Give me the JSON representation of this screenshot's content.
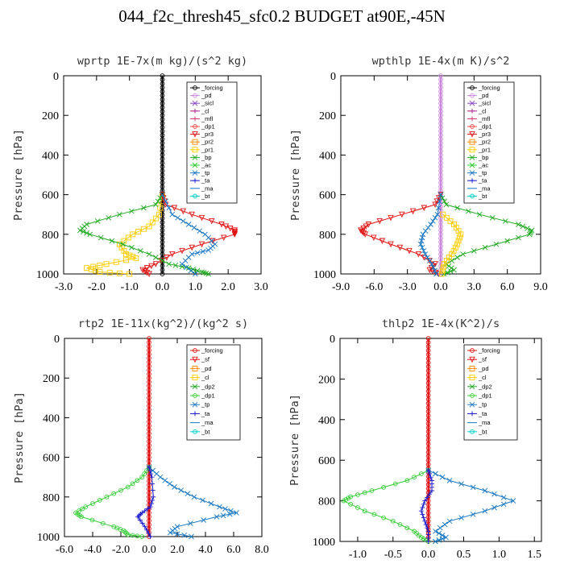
{
  "title": "044_f2c_thresh45_sfc0.2  BUDGET at90E,-45N",
  "chart_data": [
    {
      "type": "line",
      "title": "wprtp  1E-7x(m kg)/(s^2 kg)",
      "ylabel": "Pressure [hPa]",
      "xlim": [
        -3.0,
        3.0
      ],
      "ylim": [
        1000,
        0
      ],
      "xticks": [
        -3.0,
        -2.0,
        -1.0,
        0.0,
        1.0,
        2.0,
        3.0
      ],
      "xtick_labels": [
        "-3.0",
        "-2.0",
        "-1.0",
        "0.0",
        "1.0",
        "2.0",
        "3.0"
      ],
      "yticks": [
        0,
        200,
        400,
        600,
        800,
        1000
      ],
      "ytick_labels": [
        "0",
        "200",
        "400",
        "600",
        "800",
        "1000"
      ],
      "legend": [
        "_forcing",
        "_pd",
        "_sicl",
        "_cl",
        "_mfl",
        "_dp1",
        "_pr3",
        "_pr2",
        "_pr1",
        "_bp",
        "_ac",
        "_tp",
        "_ta",
        "_ma",
        "_bt"
      ],
      "series": [
        {
          "name": "_forcing",
          "color": "#000000",
          "marker": "o",
          "p": [
            0,
            1000
          ],
          "x": [
            0,
            0
          ]
        },
        {
          "name": "_pr1",
          "color": "#ffcc00",
          "marker": "s",
          "p": [
            600,
            700,
            760,
            800,
            850,
            900,
            920,
            950,
            970,
            990,
            1000
          ],
          "x": [
            0,
            -0.1,
            -0.4,
            -0.9,
            -1.3,
            -1.1,
            -0.8,
            -1.7,
            -2.3,
            -1.9,
            -1.0
          ]
        },
        {
          "name": "_pr3",
          "color": "#e01010",
          "marker": "v",
          "p": [
            600,
            650,
            700,
            750,
            780,
            800,
            850,
            900,
            950,
            980,
            1000
          ],
          "x": [
            0,
            0.1,
            0.9,
            1.8,
            2.2,
            2.2,
            1.2,
            0.3,
            -0.2,
            -0.6,
            -0.4
          ]
        },
        {
          "name": "_bp",
          "color": "#22aa22",
          "marker": "x",
          "p": [
            600,
            650,
            700,
            750,
            780,
            800,
            850,
            900,
            950,
            970,
            990,
            1000
          ],
          "x": [
            0,
            -0.2,
            -1.3,
            -2.3,
            -2.5,
            -2.2,
            -1.2,
            -0.4,
            0.2,
            0.8,
            1.2,
            1.4
          ]
        },
        {
          "name": "_tp",
          "color": "#1a78c2",
          "marker": "x",
          "p": [
            600,
            700,
            750,
            800,
            850,
            880,
            900,
            950,
            1000
          ],
          "x": [
            0,
            0.3,
            0.8,
            1.3,
            1.6,
            1.4,
            0.9,
            0.6,
            1.0
          ]
        }
      ]
    },
    {
      "type": "line",
      "title": "wpthlp  1E-4x(m K)/s^2",
      "ylabel": "Pressure [hPa]",
      "xlim": [
        -9.0,
        9.0
      ],
      "ylim": [
        1000,
        0
      ],
      "xticks": [
        -9.0,
        -6.0,
        -3.0,
        0.0,
        3.0,
        6.0,
        9.0
      ],
      "xtick_labels": [
        "-9.0",
        "-6.0",
        "-3.0",
        "0.0",
        "3.0",
        "6.0",
        "9.0"
      ],
      "yticks": [
        0,
        200,
        400,
        600,
        800,
        1000
      ],
      "ytick_labels": [
        "0",
        "200",
        "400",
        "600",
        "800",
        "1000"
      ],
      "legend": [
        "_forcing",
        "_pd",
        "_sicl",
        "_cl",
        "_mfl",
        "_dp1",
        "_pr3",
        "_pr2",
        "_pr1",
        "_bp",
        "_ac",
        "_tp",
        "_ta",
        "_ma",
        "_bt"
      ],
      "series": [
        {
          "name": "_forcing",
          "color": "#cc88dd",
          "marker": "o",
          "p": [
            0,
            1000
          ],
          "x": [
            0,
            0
          ]
        },
        {
          "name": "_pr3",
          "color": "#e01010",
          "marker": "v",
          "p": [
            600,
            650,
            700,
            750,
            780,
            800,
            850,
            900,
            950,
            980,
            1000
          ],
          "x": [
            0,
            -0.5,
            -3.5,
            -6.5,
            -7.2,
            -6.8,
            -4.5,
            -2.0,
            -0.5,
            -1.0,
            -0.2
          ]
        },
        {
          "name": "_bp",
          "color": "#22aa22",
          "marker": "x",
          "p": [
            600,
            650,
            700,
            750,
            780,
            800,
            850,
            900,
            950,
            980,
            1000
          ],
          "x": [
            0,
            0.5,
            3.5,
            7.0,
            8.2,
            8.0,
            5.0,
            2.0,
            0.5,
            1.2,
            0.3
          ]
        },
        {
          "name": "_pr1",
          "color": "#ffcc00",
          "marker": "s",
          "p": [
            700,
            750,
            800,
            850,
            900,
            950,
            1000
          ],
          "x": [
            0.2,
            1.2,
            1.8,
            1.5,
            1.0,
            0.3,
            0.1
          ]
        },
        {
          "name": "_tp",
          "color": "#1a78c2",
          "marker": "x",
          "p": [
            600,
            700,
            750,
            800,
            850,
            900,
            950,
            1000
          ],
          "x": [
            0,
            -0.3,
            -0.9,
            -1.6,
            -1.8,
            -1.4,
            -0.8,
            -0.4
          ]
        }
      ]
    },
    {
      "type": "line",
      "title": "rtp2  1E-11x(kg^2)/(kg^2 s)",
      "ylabel": "Pressure [hPa]",
      "xlim": [
        -6.0,
        8.0
      ],
      "ylim": [
        1000,
        0
      ],
      "xticks": [
        -6.0,
        -4.0,
        -2.0,
        0.0,
        2.0,
        4.0,
        6.0,
        8.0
      ],
      "xtick_labels": [
        "-6.0",
        "-4.0",
        "-2.0",
        "0.0",
        "2.0",
        "4.0",
        "6.0",
        "8.0"
      ],
      "yticks": [
        0,
        200,
        400,
        600,
        800,
        1000
      ],
      "ytick_labels": [
        "0",
        "200",
        "400",
        "600",
        "800",
        "1000"
      ],
      "legend": [
        "_forcing",
        "_sf",
        "_pd",
        "_cl",
        "_dp2",
        "_dp1",
        "_tp",
        "_ta",
        "_ma",
        "_bt"
      ],
      "series": [
        {
          "name": "_forcing",
          "color": "#e01010",
          "marker": "o",
          "p": [
            0,
            1000
          ],
          "x": [
            0,
            0
          ]
        },
        {
          "name": "_dp1",
          "color": "#33cc33",
          "marker": "o",
          "p": [
            650,
            700,
            750,
            800,
            850,
            880,
            900,
            950,
            970,
            990,
            1000
          ],
          "x": [
            0,
            -0.5,
            -1.5,
            -3.0,
            -4.5,
            -5.2,
            -4.8,
            -2.5,
            -1.8,
            -1.5,
            -0.5
          ]
        },
        {
          "name": "_tp",
          "color": "#1a78c2",
          "marker": "x",
          "p": [
            650,
            700,
            750,
            800,
            850,
            880,
            900,
            950,
            980,
            1000
          ],
          "x": [
            0,
            0.8,
            1.8,
            3.2,
            5.0,
            6.2,
            4.8,
            2.0,
            1.5,
            3.0
          ]
        },
        {
          "name": "_ta",
          "color": "#1a1acc",
          "marker": "+",
          "p": [
            650,
            700,
            800,
            850,
            880,
            900,
            950,
            1000
          ],
          "x": [
            0,
            0.2,
            0.3,
            0.1,
            -0.5,
            -0.8,
            -0.3,
            0.1
          ]
        }
      ]
    },
    {
      "type": "line",
      "title": "thlp2  1E-4x(K^2)/s",
      "ylabel": "Pressure [hPa]",
      "xlim": [
        -1.25,
        1.6
      ],
      "ylim": [
        1000,
        0
      ],
      "xticks": [
        -1.0,
        -0.5,
        0.0,
        0.5,
        1.0,
        1.5
      ],
      "xtick_labels": [
        "-1.0",
        "-0.5",
        "0.0",
        "0.5",
        "1.0",
        "1.5"
      ],
      "yticks": [
        0,
        200,
        400,
        600,
        800,
        1000
      ],
      "ytick_labels": [
        "0",
        "200",
        "400",
        "600",
        "800",
        "1000"
      ],
      "legend": [
        "_forcing",
        "_sf",
        "_pd",
        "_cl",
        "_dp2",
        "_dp1",
        "_tp",
        "_ta",
        "_ma",
        "_bt"
      ],
      "series": [
        {
          "name": "_forcing",
          "color": "#e01010",
          "marker": "o",
          "p": [
            0,
            1000
          ],
          "x": [
            0,
            0
          ]
        },
        {
          "name": "_dp1",
          "color": "#33cc33",
          "marker": "o",
          "p": [
            650,
            700,
            750,
            780,
            800,
            850,
            900,
            950,
            980,
            1000
          ],
          "x": [
            0,
            -0.3,
            -0.8,
            -1.1,
            -1.2,
            -0.9,
            -0.5,
            -0.2,
            -0.1,
            0
          ]
        },
        {
          "name": "_tp",
          "color": "#1a78c2",
          "marker": "x",
          "p": [
            650,
            700,
            750,
            800,
            850,
            900,
            950,
            980,
            1000
          ],
          "x": [
            0,
            0.3,
            0.8,
            1.2,
            0.8,
            0.3,
            0.1,
            0.25,
            0.1
          ]
        },
        {
          "name": "_ta",
          "color": "#1a1acc",
          "marker": "+",
          "p": [
            650,
            700,
            750,
            800,
            850,
            900,
            950,
            1000
          ],
          "x": [
            0,
            0.05,
            0.05,
            -0.05,
            -0.1,
            -0.05,
            0,
            0
          ]
        }
      ]
    }
  ]
}
